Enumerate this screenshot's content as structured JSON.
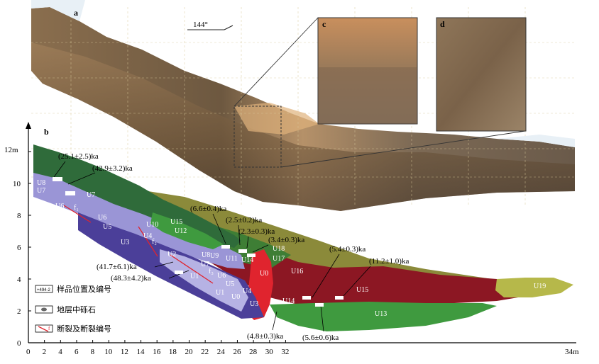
{
  "panels": {
    "a": "a",
    "b": "b",
    "c": "c",
    "d": "d"
  },
  "orientation": "144°",
  "units": {
    "U1": "U1",
    "U2": "U2",
    "U3": "U3",
    "U4": "U4",
    "U5": "U5",
    "U6": "U6",
    "U7": "U7",
    "U8": "U8",
    "U9": "U9",
    "U10": "U10",
    "U11": "U11",
    "U12": "U12",
    "U13": "U13",
    "U14": "U14",
    "U15": "U15",
    "U16": "U16",
    "U17": "U17",
    "U18": "U18",
    "U19": "U19",
    "U0": "U0"
  },
  "ages": {
    "a1": "(25.1±2.5)ka",
    "a2": "(42.9±3.2)ka",
    "a3": "(6.6±0.4)ka",
    "a4": "(2.5±0.2)ka",
    "a5": "(2.3±0.3)ka",
    "a6": "(3.4±0.3)ka",
    "a7": "(5.4±0.3)ka",
    "a8": "(11.2±1.0)ka",
    "a9": "(41.7±6.1)ka",
    "a10": "(48.3±4.2)ka",
    "a11": "(4.8±0.3)ka",
    "a12": "(5.6±0.6)ka"
  },
  "y_axis": {
    "unit_label": "12m",
    "ticks": [
      "10",
      "8",
      "6",
      "4",
      "2",
      "0"
    ]
  },
  "x_axis": {
    "ticks": [
      "0",
      "2",
      "4",
      "6",
      "8",
      "10",
      "12",
      "14",
      "16",
      "18",
      "20",
      "22",
      "24",
      "26",
      "28",
      "30",
      "32"
    ],
    "last_label": "34m"
  },
  "legend": {
    "sample_icon": "+494-2",
    "sample_label": "样品位置及编号",
    "gravel_label": "地层中砾石",
    "fault_icon": "f",
    "fault_label": "断裂及断裂编号"
  },
  "fault_labels": {
    "f1": "f₁",
    "f2": "f₂",
    "f3": "f₃"
  },
  "colors": {
    "green_dark": "#2f6b3a",
    "lavender": "#9a95d6",
    "violet": "#4b3f99",
    "maroon": "#8c1723",
    "olive": "#8b8a3a",
    "bright_green": "#3f9a3f",
    "red": "#e0242e",
    "yellow_olive": "#b6b84a"
  }
}
